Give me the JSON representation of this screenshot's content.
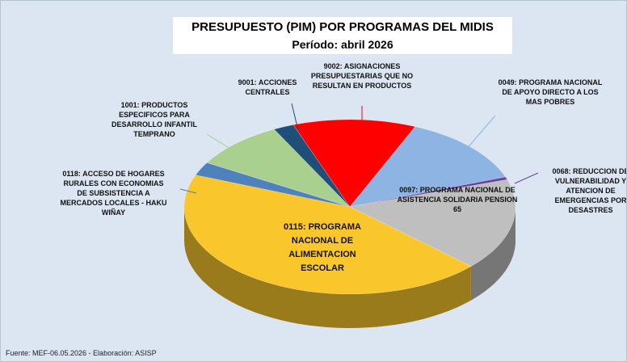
{
  "chart_data": {
    "type": "pie3d",
    "title": "PRESUPUESTO (PIM) POR PROGRAMAS DEL MIDIS",
    "subtitle": "Período: abril 2026",
    "source": "Fuente:  MEF-06.05.2026 - Elaboración: ASISP",
    "categories": [
      "9002: ASIGNACIONES PRESUPUESTARIAS QUE NO RESULTAN EN PRODUCTOS",
      "0049: PROGRAMA NACIONAL DE APOYO DIRECTO A LOS MAS POBRES",
      "0068: REDUCCION DE VULNERABILIDAD Y ATENCION DE EMERGENCIAS POR DESASTRES",
      "0097: PROGRAMA NACIONAL DE ASISTENCIA SOLIDARIA PENSION 65",
      "0115: PROGRAMA NACIONAL DE ALIMENTACION ESCOLAR",
      "0118: ACCESO DE HOGARES RURALES CON ECONOMIAS DE SUBSISTENCIA A MERCADOS LOCALES - HAKU WIÑAY",
      "1001: PRODUCTOS ESPECIFICOS PARA DESARROLLO INFANTIL TEMPRANO",
      "9001: ACCIONES CENTRALES"
    ],
    "values": [
      12,
      13,
      0.5,
      17,
      44,
      2.5,
      9,
      2
    ],
    "colors": [
      "#ff0000",
      "#8db4e2",
      "#6b3fa0",
      "#bfbfbf",
      "#f9c62b",
      "#4f81bd",
      "#a9d08e",
      "#1f4e79"
    ]
  }
}
